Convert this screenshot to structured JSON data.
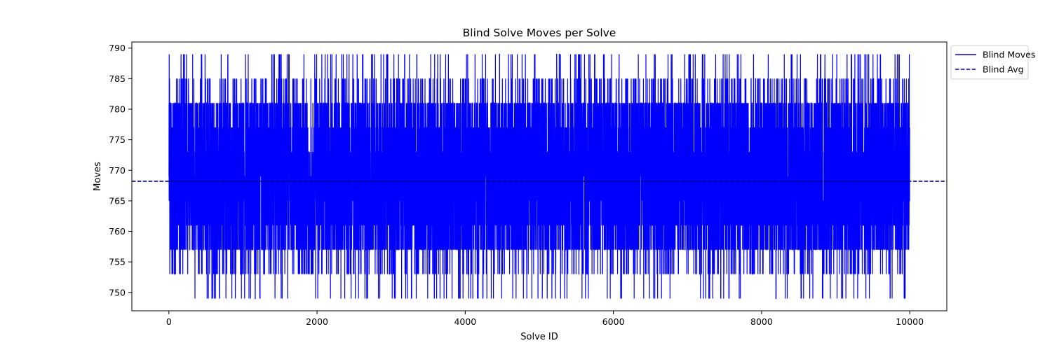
{
  "chart_data": {
    "type": "line",
    "title": "Blind Solve Moves per Solve",
    "xlabel": "Solve ID",
    "ylabel": "Moves",
    "xlim": [
      -500,
      10500
    ],
    "ylim": [
      747,
      791
    ],
    "xticks": [
      0,
      2000,
      4000,
      6000,
      8000,
      10000
    ],
    "yticks": [
      750,
      755,
      760,
      765,
      770,
      775,
      780,
      785,
      790
    ],
    "grid": false,
    "legend": {
      "placement": "outside-top-right"
    },
    "series": [
      {
        "name": "Blind Moves",
        "kind": "solid",
        "color": "#0000ff",
        "x_range": [
          0,
          9999
        ],
        "point_count": 10000,
        "y_min": 749,
        "y_max": 789,
        "typical_range": [
          757,
          781
        ],
        "level_values": [
          749,
          753,
          757,
          761,
          765,
          769,
          773,
          777,
          781,
          785,
          789
        ]
      },
      {
        "name": "Blind Avg",
        "kind": "dashed",
        "color": "#00008b",
        "value": 768.2
      }
    ]
  }
}
